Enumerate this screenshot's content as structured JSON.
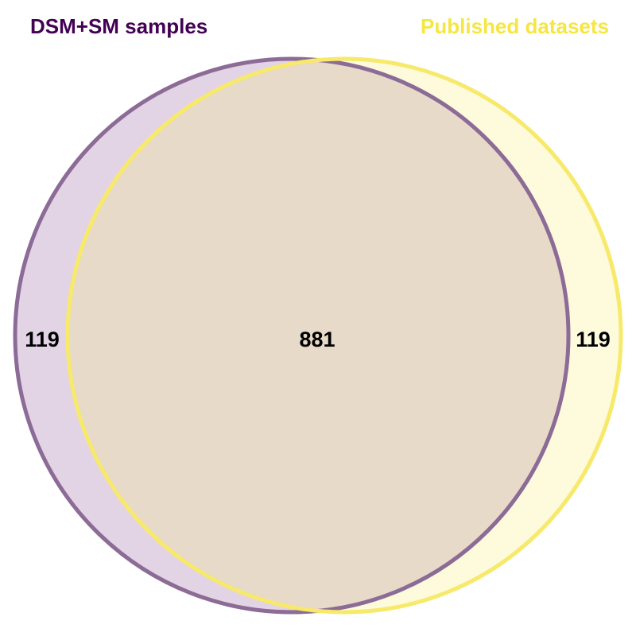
{
  "diagram": {
    "type": "venn",
    "sets": [
      {
        "name": "DSM+SM samples",
        "color": "#440154",
        "stroke_color": "#8c6b96",
        "fill_color": "#e2d4e4"
      },
      {
        "name": "Published datasets",
        "color": "#f5e642",
        "stroke_color": "#f7e96a",
        "fill_color": "#fefadc"
      }
    ],
    "overlap_fill_color": "#e7dac8",
    "counts": {
      "only_first": "119",
      "both": "881",
      "only_second": "119"
    }
  }
}
